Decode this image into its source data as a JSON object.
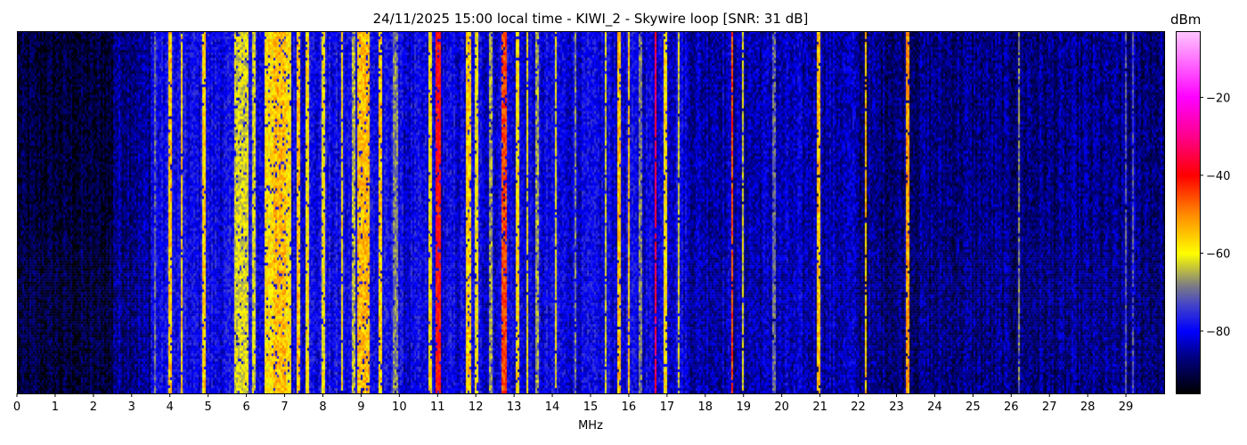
{
  "chart_data": {
    "type": "heatmap",
    "title": "24/11/2025 15:00 local time - KIWI_2 - Skywire loop [SNR: 31 dB]",
    "xlabel": "MHz",
    "xlim": [
      0,
      30
    ],
    "xticks": [
      "0",
      "1",
      "2",
      "3",
      "4",
      "5",
      "6",
      "7",
      "8",
      "9",
      "10",
      "11",
      "12",
      "13",
      "14",
      "15",
      "16",
      "17",
      "18",
      "19",
      "20",
      "21",
      "22",
      "23",
      "24",
      "25",
      "26",
      "27",
      "28",
      "29"
    ],
    "colorbar": {
      "label": "dBm",
      "range": [
        -96,
        -3
      ],
      "ticks": [
        "−20",
        "−40",
        "−60",
        "−80"
      ],
      "tick_values": [
        -20,
        -40,
        -60,
        -80
      ],
      "colormap": [
        [
          -96,
          "#000000"
        ],
        [
          -86,
          "#00008c"
        ],
        [
          -80,
          "#0000ff"
        ],
        [
          -73,
          "#4646c8"
        ],
        [
          -68,
          "#808080"
        ],
        [
          -60,
          "#ffff00"
        ],
        [
          -50,
          "#ff8c00"
        ],
        [
          -40,
          "#ff0000"
        ],
        [
          -30,
          "#ff008c"
        ],
        [
          -20,
          "#ff00ff"
        ],
        [
          -3,
          "#ffc8ff"
        ]
      ]
    },
    "noise_floor": [
      {
        "from": 0,
        "to": 2.5,
        "dbm": -92
      },
      {
        "from": 2.5,
        "to": 3.5,
        "dbm": -86
      },
      {
        "from": 3.5,
        "to": 10,
        "dbm": -80
      },
      {
        "from": 10,
        "to": 17.5,
        "dbm": -81
      },
      {
        "from": 17.5,
        "to": 22,
        "dbm": -84
      },
      {
        "from": 22,
        "to": 30,
        "dbm": -87
      }
    ],
    "signals": [
      {
        "mhz": 3.6,
        "dbm": -70,
        "bw": 0.03
      },
      {
        "mhz": 4.0,
        "dbm": -55,
        "bw": 0.05
      },
      {
        "mhz": 4.3,
        "dbm": -56,
        "bw": 0.04
      },
      {
        "mhz": 4.9,
        "dbm": -56,
        "bw": 0.05
      },
      {
        "mhz": 5.85,
        "dbm": -62,
        "bw": 0.35
      },
      {
        "mhz": 6.2,
        "dbm": -62,
        "bw": 0.1
      },
      {
        "mhz": 6.6,
        "dbm": -58,
        "bw": 0.2
      },
      {
        "mhz": 6.85,
        "dbm": -54,
        "bw": 0.3
      },
      {
        "mhz": 7.1,
        "dbm": -58,
        "bw": 0.15
      },
      {
        "mhz": 7.35,
        "dbm": -55,
        "bw": 0.05
      },
      {
        "mhz": 7.6,
        "dbm": -58,
        "bw": 0.08
      },
      {
        "mhz": 8.0,
        "dbm": -60,
        "bw": 0.08
      },
      {
        "mhz": 8.5,
        "dbm": -58,
        "bw": 0.06
      },
      {
        "mhz": 8.8,
        "dbm": -64,
        "bw": 0.1
      },
      {
        "mhz": 9.05,
        "dbm": -54,
        "bw": 0.3
      },
      {
        "mhz": 9.5,
        "dbm": -56,
        "bw": 0.08
      },
      {
        "mhz": 9.9,
        "dbm": -68,
        "bw": 0.08
      },
      {
        "mhz": 10.8,
        "dbm": -58,
        "bw": 0.06
      },
      {
        "mhz": 11.0,
        "dbm": -40,
        "bw": 0.12
      },
      {
        "mhz": 11.8,
        "dbm": -56,
        "bw": 0.1
      },
      {
        "mhz": 12.0,
        "dbm": -60,
        "bw": 0.06
      },
      {
        "mhz": 12.4,
        "dbm": -66,
        "bw": 0.06
      },
      {
        "mhz": 12.75,
        "dbm": -45,
        "bw": 0.12
      },
      {
        "mhz": 13.1,
        "dbm": -58,
        "bw": 0.05
      },
      {
        "mhz": 13.35,
        "dbm": -60,
        "bw": 0.05
      },
      {
        "mhz": 13.6,
        "dbm": -66,
        "bw": 0.04
      },
      {
        "mhz": 14.1,
        "dbm": -60,
        "bw": 0.04
      },
      {
        "mhz": 14.6,
        "dbm": -68,
        "bw": 0.04
      },
      {
        "mhz": 15.4,
        "dbm": -62,
        "bw": 0.04
      },
      {
        "mhz": 15.75,
        "dbm": -55,
        "bw": 0.05
      },
      {
        "mhz": 16.0,
        "dbm": -55,
        "bw": 0.06
      },
      {
        "mhz": 16.3,
        "dbm": -68,
        "bw": 0.04
      },
      {
        "mhz": 16.7,
        "dbm": -35,
        "bw": 0.03
      },
      {
        "mhz": 16.95,
        "dbm": -58,
        "bw": 0.04
      },
      {
        "mhz": 17.3,
        "dbm": -62,
        "bw": 0.04
      },
      {
        "mhz": 18.7,
        "dbm": -45,
        "bw": 0.03
      },
      {
        "mhz": 19.0,
        "dbm": -62,
        "bw": 0.03
      },
      {
        "mhz": 19.8,
        "dbm": -70,
        "bw": 0.04
      },
      {
        "mhz": 20.95,
        "dbm": -55,
        "bw": 0.05
      },
      {
        "mhz": 22.2,
        "dbm": -55,
        "bw": 0.04
      },
      {
        "mhz": 23.3,
        "dbm": -52,
        "bw": 0.05
      },
      {
        "mhz": 26.2,
        "dbm": -68,
        "bw": 0.04
      },
      {
        "mhz": 29.0,
        "dbm": -72,
        "bw": 0.03
      },
      {
        "mhz": 29.2,
        "dbm": -72,
        "bw": 0.03
      }
    ]
  }
}
